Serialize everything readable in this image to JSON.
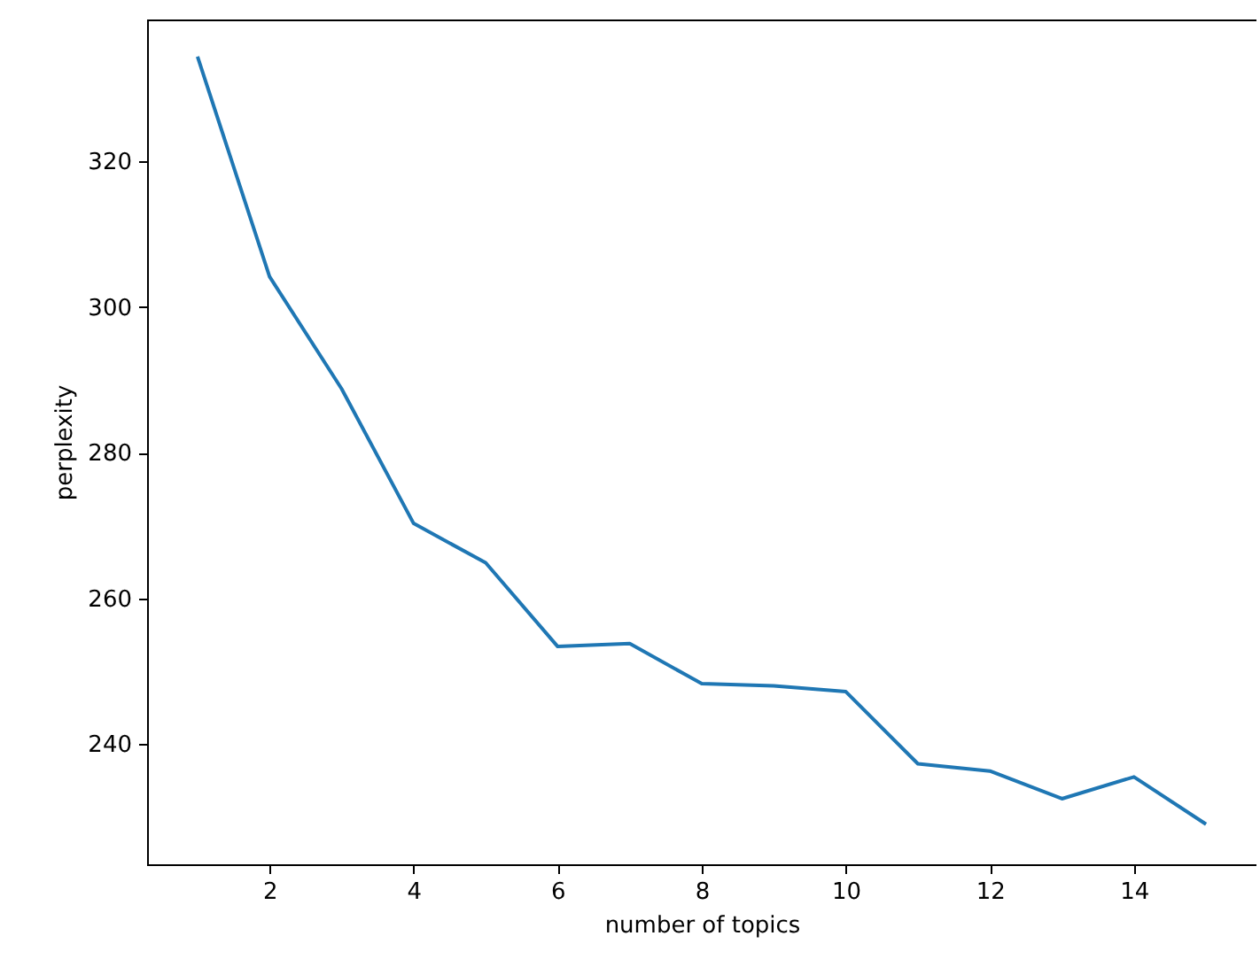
{
  "chart_data": {
    "type": "line",
    "xlabel": "number of topics",
    "ylabel": "perplexity",
    "x": [
      1,
      2,
      3,
      4,
      5,
      6,
      7,
      8,
      9,
      10,
      11,
      12,
      13,
      14,
      15
    ],
    "series": [
      {
        "color": "#1f77b4",
        "values": [
          334.4,
          304.2,
          288.8,
          270.3,
          264.9,
          253.4,
          253.8,
          248.3,
          248.0,
          247.2,
          237.3,
          236.3,
          232.5,
          235.5,
          229.0
        ]
      }
    ],
    "xlim": [
      0.3,
      15.7
    ],
    "xticks": [
      2,
      4,
      6,
      8,
      10,
      12,
      14
    ],
    "ylim": [
      223.5,
      339.5
    ],
    "yticks": [
      240,
      260,
      280,
      300,
      320
    ],
    "grid": false,
    "marker": "none",
    "line_style": "solid"
  }
}
